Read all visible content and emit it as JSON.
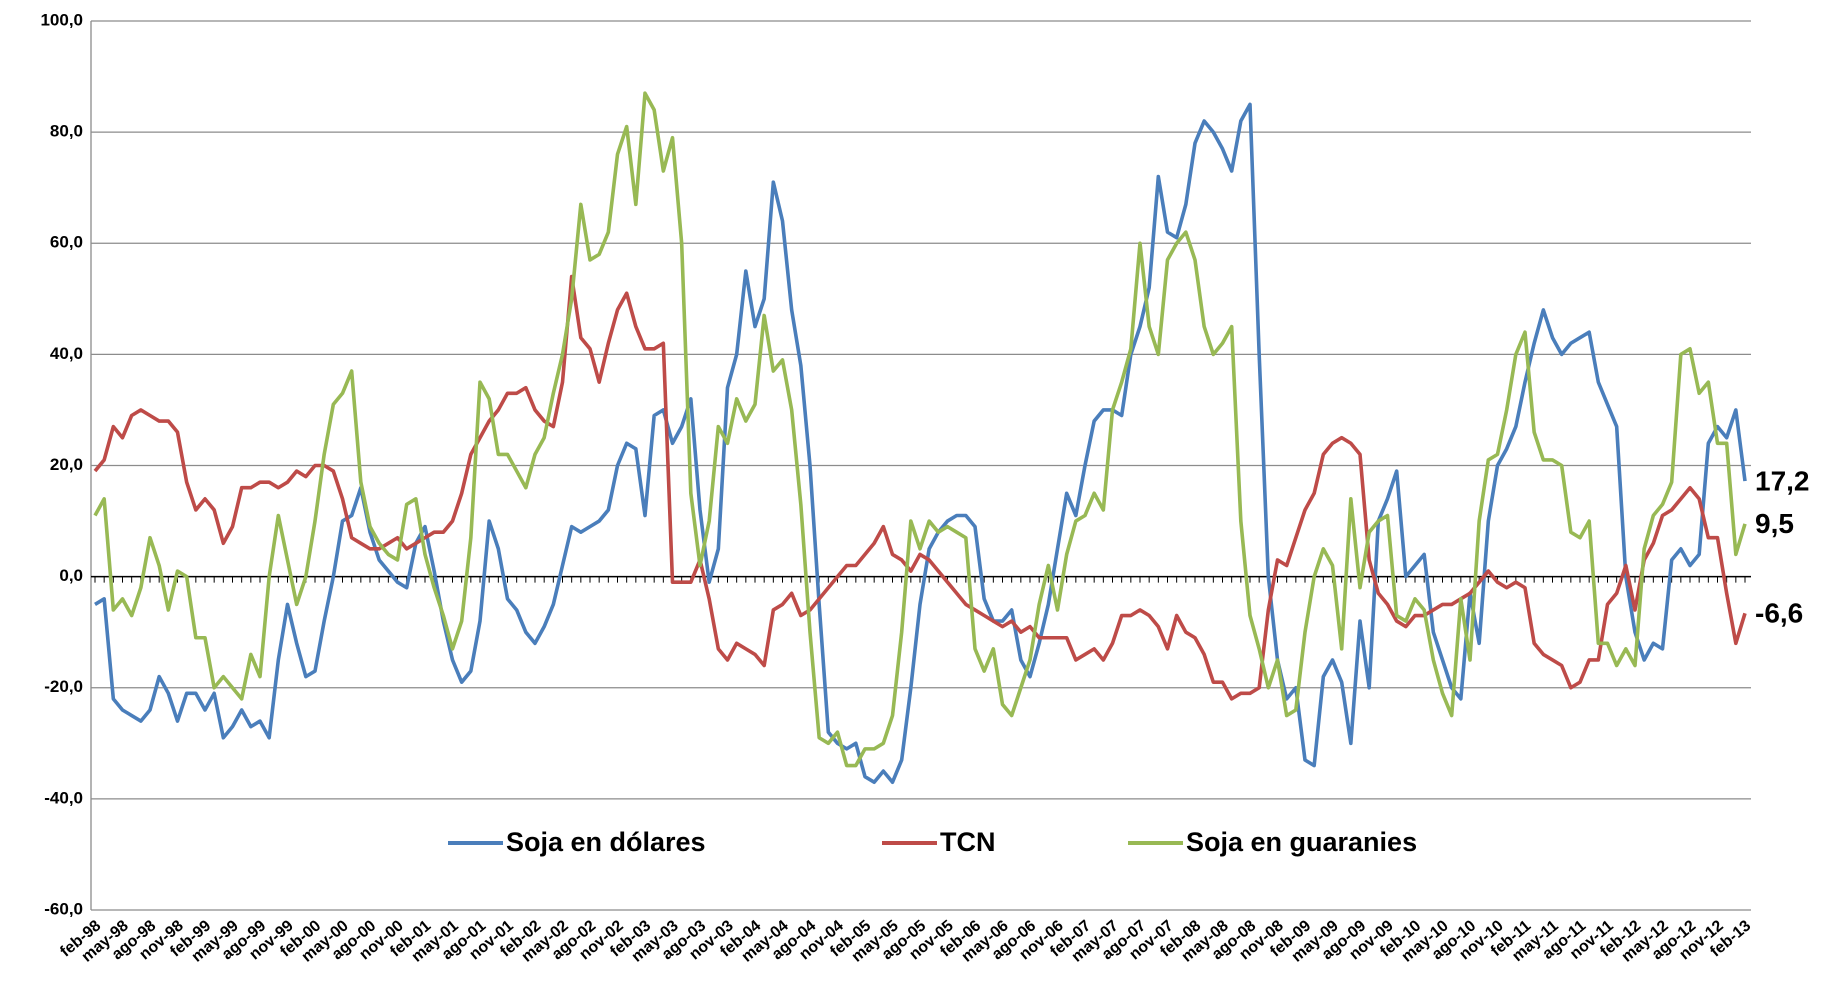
{
  "chart_data": {
    "type": "line",
    "categories": [
      "feb-98",
      null,
      null,
      "may-98",
      null,
      null,
      "ago-98",
      null,
      null,
      "nov-98",
      null,
      null,
      "feb-99",
      null,
      null,
      "may-99",
      null,
      null,
      "ago-99",
      null,
      null,
      "nov-99",
      null,
      null,
      "feb-00",
      null,
      null,
      "may-00",
      null,
      null,
      "ago-00",
      null,
      null,
      "nov-00",
      null,
      null,
      "feb-01",
      null,
      null,
      "may-01",
      null,
      null,
      "ago-01",
      null,
      null,
      "nov-01",
      null,
      null,
      "feb-02",
      null,
      null,
      "may-02",
      null,
      null,
      "ago-02",
      null,
      null,
      "nov-02",
      null,
      null,
      "feb-03",
      null,
      null,
      "may-03",
      null,
      null,
      "ago-03",
      null,
      null,
      "nov-03",
      null,
      null,
      "feb-04",
      null,
      null,
      "may-04",
      null,
      null,
      "ago-04",
      null,
      null,
      "nov-04",
      null,
      null,
      "feb-05",
      null,
      null,
      "may-05",
      null,
      null,
      "ago-05",
      null,
      null,
      "nov-05",
      null,
      null,
      "feb-06",
      null,
      null,
      "may-06",
      null,
      null,
      "ago-06",
      null,
      null,
      "nov-06",
      null,
      null,
      "feb-07",
      null,
      null,
      "may-07",
      null,
      null,
      "ago-07",
      null,
      null,
      "nov-07",
      null,
      null,
      "feb-08",
      null,
      null,
      "may-08",
      null,
      null,
      "ago-08",
      null,
      null,
      "nov-08",
      null,
      null,
      "feb-09",
      null,
      null,
      "may-09",
      null,
      null,
      "ago-09",
      null,
      null,
      "nov-09",
      null,
      null,
      "feb-10",
      null,
      null,
      "may-10",
      null,
      null,
      "ago-10",
      null,
      null,
      "nov-10",
      null,
      null,
      "feb-11",
      null,
      null,
      "may-11",
      null,
      null,
      "ago-11",
      null,
      null,
      "nov-11",
      null,
      null,
      "feb-12",
      null,
      null,
      "may-12",
      null,
      null,
      "ago-12",
      null,
      null,
      "nov-12",
      null,
      null,
      "feb-13"
    ],
    "series": [
      {
        "name": "Soja en dólares",
        "color": "#4a7ebb",
        "values": [
          -5,
          -4,
          -22,
          -24,
          -25,
          -26,
          -24,
          -18,
          -21,
          -26,
          -21,
          -21,
          -24,
          -21,
          -29,
          -27,
          -24,
          -27,
          -26,
          -29,
          -15,
          -5,
          -12,
          -18,
          -17,
          -8,
          0,
          10,
          11,
          16,
          8,
          3,
          1,
          -1,
          -2,
          6,
          9,
          1,
          -8,
          -15,
          -19,
          -17,
          -8,
          10,
          5,
          -4,
          -6,
          -10,
          -12,
          -9,
          -5,
          2,
          9,
          8,
          9,
          10,
          12,
          20,
          24,
          23,
          11,
          29,
          30,
          24,
          27,
          32,
          12,
          -1,
          5,
          34,
          40,
          55,
          45,
          50,
          71,
          64,
          48,
          38,
          20,
          -5,
          -28,
          -30,
          -31,
          -30,
          -36,
          -37,
          -35,
          -37,
          -33,
          -20,
          -5,
          5,
          8,
          10,
          11,
          11,
          9,
          -4,
          -8,
          -8,
          -6,
          -15,
          -18,
          -12,
          -5,
          5,
          15,
          11,
          20,
          28,
          30,
          30,
          29,
          40,
          45,
          52,
          72,
          62,
          61,
          67,
          78,
          82,
          80,
          77,
          73,
          82,
          85,
          40,
          0,
          -15,
          -22,
          -20,
          -33,
          -34,
          -18,
          -15,
          -19,
          -30,
          -8,
          -20,
          10,
          14,
          19,
          0,
          2,
          4,
          -10,
          -15,
          -20,
          -22,
          -3,
          -12,
          10,
          20,
          23,
          27,
          35,
          42,
          48,
          43,
          40,
          42,
          43,
          44,
          35,
          31,
          27,
          0,
          -10,
          -15,
          -12,
          -13,
          3,
          5,
          2,
          4,
          24,
          27,
          25,
          30,
          17.2
        ],
        "value_labels": [
          null,
          null,
          null,
          null,
          null,
          null,
          null,
          null,
          null,
          null,
          null,
          null,
          null,
          null,
          null,
          null,
          null,
          null,
          null,
          null,
          null,
          null,
          null,
          null,
          null,
          null,
          null,
          null,
          null,
          null,
          null,
          null,
          null,
          null,
          null,
          null,
          null,
          null,
          null,
          null,
          null,
          null,
          null,
          null,
          null,
          null,
          null,
          null,
          null,
          null,
          null,
          null,
          null,
          null,
          null,
          null,
          null,
          null,
          null,
          null,
          null,
          null,
          null,
          null,
          null,
          null,
          null,
          null,
          null,
          null,
          null,
          null,
          null,
          null,
          null,
          null,
          null,
          null,
          null,
          null,
          null,
          null,
          null,
          null,
          null,
          null,
          null,
          null,
          null,
          null,
          null,
          null,
          null,
          null,
          null,
          null,
          null,
          null,
          null,
          null,
          null,
          null,
          null,
          null,
          null,
          null,
          null,
          null,
          null,
          null,
          null,
          null,
          null,
          null,
          null,
          null,
          null,
          null,
          null,
          null,
          null,
          null,
          null,
          null,
          null,
          null,
          null,
          null,
          null,
          null,
          null,
          null,
          null,
          null,
          null,
          null,
          null,
          null,
          null,
          null,
          null,
          null,
          null,
          null,
          null,
          null,
          null,
          null,
          null,
          null,
          null,
          null,
          null,
          null,
          null,
          null,
          null,
          null,
          null,
          null,
          null,
          null,
          null,
          null,
          null,
          null,
          null,
          null,
          null,
          null,
          null,
          null,
          null,
          null,
          null,
          null,
          null,
          null,
          null,
          null,
          "17,2"
        ]
      },
      {
        "name": "TCN",
        "color": "#be4b48",
        "values": [
          19,
          21,
          27,
          25,
          29,
          30,
          29,
          28,
          28,
          26,
          17,
          12,
          14,
          12,
          6,
          9,
          16,
          16,
          17,
          17,
          16,
          17,
          19,
          18,
          20,
          20,
          19,
          14,
          7,
          6,
          5,
          5,
          6,
          7,
          5,
          6,
          7,
          8,
          8,
          10,
          15,
          22,
          25,
          28,
          30,
          33,
          33,
          34,
          30,
          28,
          27,
          35,
          54,
          43,
          41,
          35,
          42,
          48,
          51,
          45,
          41,
          41,
          42,
          -1,
          -1,
          -1,
          3,
          -4,
          -13,
          -15,
          -12,
          -13,
          -14,
          -16,
          -6,
          -5,
          -3,
          -7,
          -6,
          -4,
          -2,
          0,
          2,
          2,
          4,
          6,
          9,
          4,
          3,
          1,
          4,
          3,
          1,
          -1,
          -3,
          -5,
          -6,
          -7,
          -8,
          -9,
          -8,
          -10,
          -9,
          -11,
          -11,
          -11,
          -11,
          -15,
          -14,
          -13,
          -15,
          -12,
          -7,
          -7,
          -6,
          -7,
          -9,
          -13,
          -7,
          -10,
          -11,
          -14,
          -19,
          -19,
          -22,
          -21,
          -21,
          -20,
          -6,
          3,
          2,
          7,
          12,
          15,
          22,
          24,
          25,
          24,
          22,
          3,
          -3,
          -5,
          -8,
          -9,
          -7,
          -7,
          -6,
          -5,
          -5,
          -4,
          -3,
          -1,
          1,
          -1,
          -2,
          -1,
          -2,
          -12,
          -14,
          -15,
          -16,
          -20,
          -19,
          -15,
          -15,
          -5,
          -3,
          2,
          -6,
          3,
          6,
          11,
          12,
          14,
          16,
          14,
          7,
          7,
          -3,
          -12,
          -6.6
        ],
        "value_labels": [
          null,
          null,
          null,
          null,
          null,
          null,
          null,
          null,
          null,
          null,
          null,
          null,
          null,
          null,
          null,
          null,
          null,
          null,
          null,
          null,
          null,
          null,
          null,
          null,
          null,
          null,
          null,
          null,
          null,
          null,
          null,
          null,
          null,
          null,
          null,
          null,
          null,
          null,
          null,
          null,
          null,
          null,
          null,
          null,
          null,
          null,
          null,
          null,
          null,
          null,
          null,
          null,
          null,
          null,
          null,
          null,
          null,
          null,
          null,
          null,
          null,
          null,
          null,
          null,
          null,
          null,
          null,
          null,
          null,
          null,
          null,
          null,
          null,
          null,
          null,
          null,
          null,
          null,
          null,
          null,
          null,
          null,
          null,
          null,
          null,
          null,
          null,
          null,
          null,
          null,
          null,
          null,
          null,
          null,
          null,
          null,
          null,
          null,
          null,
          null,
          null,
          null,
          null,
          null,
          null,
          null,
          null,
          null,
          null,
          null,
          null,
          null,
          null,
          null,
          null,
          null,
          null,
          null,
          null,
          null,
          null,
          null,
          null,
          null,
          null,
          null,
          null,
          null,
          null,
          null,
          null,
          null,
          null,
          null,
          null,
          null,
          null,
          null,
          null,
          null,
          null,
          null,
          null,
          null,
          null,
          null,
          null,
          null,
          null,
          null,
          null,
          null,
          null,
          null,
          null,
          null,
          null,
          null,
          null,
          null,
          null,
          null,
          null,
          null,
          null,
          null,
          null,
          null,
          null,
          null,
          null,
          null,
          null,
          null,
          null,
          null,
          null,
          null,
          null,
          null,
          "-6,6"
        ]
      },
      {
        "name": "Soja en guaranies",
        "color": "#98b954",
        "values": [
          11,
          14,
          -6,
          -4,
          -7,
          -2,
          7,
          2,
          -6,
          1,
          0,
          -11,
          -11,
          -20,
          -18,
          -20,
          -22,
          -14,
          -18,
          0,
          11,
          3,
          -5,
          0,
          10,
          22,
          31,
          33,
          37,
          17,
          9,
          6,
          4,
          3,
          13,
          14,
          4,
          -2,
          -7,
          -13,
          -8,
          7,
          35,
          32,
          22,
          22,
          19,
          16,
          22,
          25,
          33,
          40,
          50,
          67,
          57,
          58,
          62,
          76,
          81,
          67,
          87,
          84,
          73,
          79,
          60,
          15,
          2,
          10,
          27,
          24,
          32,
          28,
          31,
          47,
          37,
          39,
          30,
          13,
          -10,
          -29,
          -30,
          -28,
          -34,
          -34,
          -31,
          -31,
          -30,
          -25,
          -10,
          10,
          5,
          10,
          8,
          9,
          8,
          7,
          -13,
          -17,
          -13,
          -23,
          -25,
          -20,
          -15,
          -5,
          2,
          -6,
          4,
          10,
          11,
          15,
          12,
          30,
          35,
          41,
          60,
          45,
          40,
          57,
          60,
          62,
          57,
          45,
          40,
          42,
          45,
          10,
          -7,
          -13,
          -20,
          -15,
          -25,
          -24,
          -10,
          0,
          5,
          2,
          -13,
          14,
          -2,
          8,
          10,
          11,
          -7,
          -8,
          -4,
          -6,
          -15,
          -21,
          -25,
          -4,
          -15,
          10,
          21,
          22,
          30,
          40,
          44,
          26,
          21,
          21,
          20,
          8,
          7,
          10,
          -12,
          -12,
          -16,
          -13,
          -16,
          5,
          11,
          13,
          17,
          40,
          41,
          33,
          35,
          24,
          24,
          4,
          9.5
        ],
        "value_labels": [
          null,
          null,
          null,
          null,
          null,
          null,
          null,
          null,
          null,
          null,
          null,
          null,
          null,
          null,
          null,
          null,
          null,
          null,
          null,
          null,
          null,
          null,
          null,
          null,
          null,
          null,
          null,
          null,
          null,
          null,
          null,
          null,
          null,
          null,
          null,
          null,
          null,
          null,
          null,
          null,
          null,
          null,
          null,
          null,
          null,
          null,
          null,
          null,
          null,
          null,
          null,
          null,
          null,
          null,
          null,
          null,
          null,
          null,
          null,
          null,
          null,
          null,
          null,
          null,
          null,
          null,
          null,
          null,
          null,
          null,
          null,
          null,
          null,
          null,
          null,
          null,
          null,
          null,
          null,
          null,
          null,
          null,
          null,
          null,
          null,
          null,
          null,
          null,
          null,
          null,
          null,
          null,
          null,
          null,
          null,
          null,
          null,
          null,
          null,
          null,
          null,
          null,
          null,
          null,
          null,
          null,
          null,
          null,
          null,
          null,
          null,
          null,
          null,
          null,
          null,
          null,
          null,
          null,
          null,
          null,
          null,
          null,
          null,
          null,
          null,
          null,
          null,
          null,
          null,
          null,
          null,
          null,
          null,
          null,
          null,
          null,
          null,
          null,
          null,
          null,
          null,
          null,
          null,
          null,
          null,
          null,
          null,
          null,
          null,
          null,
          null,
          null,
          null,
          null,
          null,
          null,
          null,
          null,
          null,
          null,
          null,
          null,
          null,
          null,
          null,
          null,
          null,
          null,
          null,
          null,
          null,
          null,
          null,
          null,
          null,
          null,
          null,
          null,
          null,
          null,
          "9,5"
        ]
      }
    ],
    "ylim": [
      -60,
      100
    ],
    "yticks": [
      {
        "value": -60,
        "label": "-60,0"
      },
      {
        "value": -40,
        "label": "-40,0"
      },
      {
        "value": -20,
        "label": "-20,0"
      },
      {
        "value": 0,
        "label": "0,0"
      },
      {
        "value": 20,
        "label": "20,0"
      },
      {
        "value": 40,
        "label": "40,0"
      },
      {
        "value": 60,
        "label": "60,0"
      },
      {
        "value": 80,
        "label": "80,0"
      },
      {
        "value": 100,
        "label": "100,0"
      }
    ],
    "grid": true,
    "legend": "bottom"
  }
}
